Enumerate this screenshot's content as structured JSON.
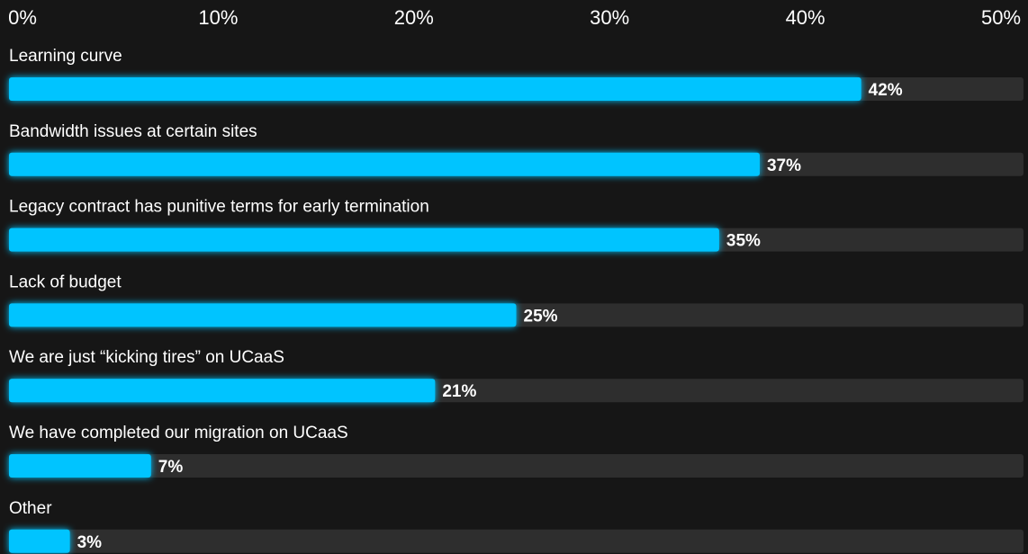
{
  "chart_data": {
    "type": "bar",
    "orientation": "horizontal",
    "title": "",
    "xlabel": "",
    "ylabel": "",
    "xlim": [
      0,
      50
    ],
    "ticks": [
      0,
      10,
      20,
      30,
      40,
      50
    ],
    "tick_labels": [
      "0%",
      "10%",
      "20%",
      "30%",
      "40%",
      "50%"
    ],
    "categories": [
      "Learning curve",
      "Bandwidth issues at certain sites",
      "Legacy contract has punitive terms for early termination",
      "Lack of budget",
      "We are just “kicking tires” on UCaaS",
      "We have completed our migration on UCaaS",
      "Other"
    ],
    "values": [
      42,
      37,
      35,
      25,
      21,
      7,
      3
    ],
    "value_labels": [
      "42%",
      "37%",
      "35%",
      "25%",
      "21%",
      "7%",
      "3%"
    ],
    "grid": false,
    "legend": "none",
    "colors": {
      "bar": "#00C4FF",
      "track": "#2E2E2E",
      "background": "#161616",
      "text": "#FFFFFF"
    }
  }
}
